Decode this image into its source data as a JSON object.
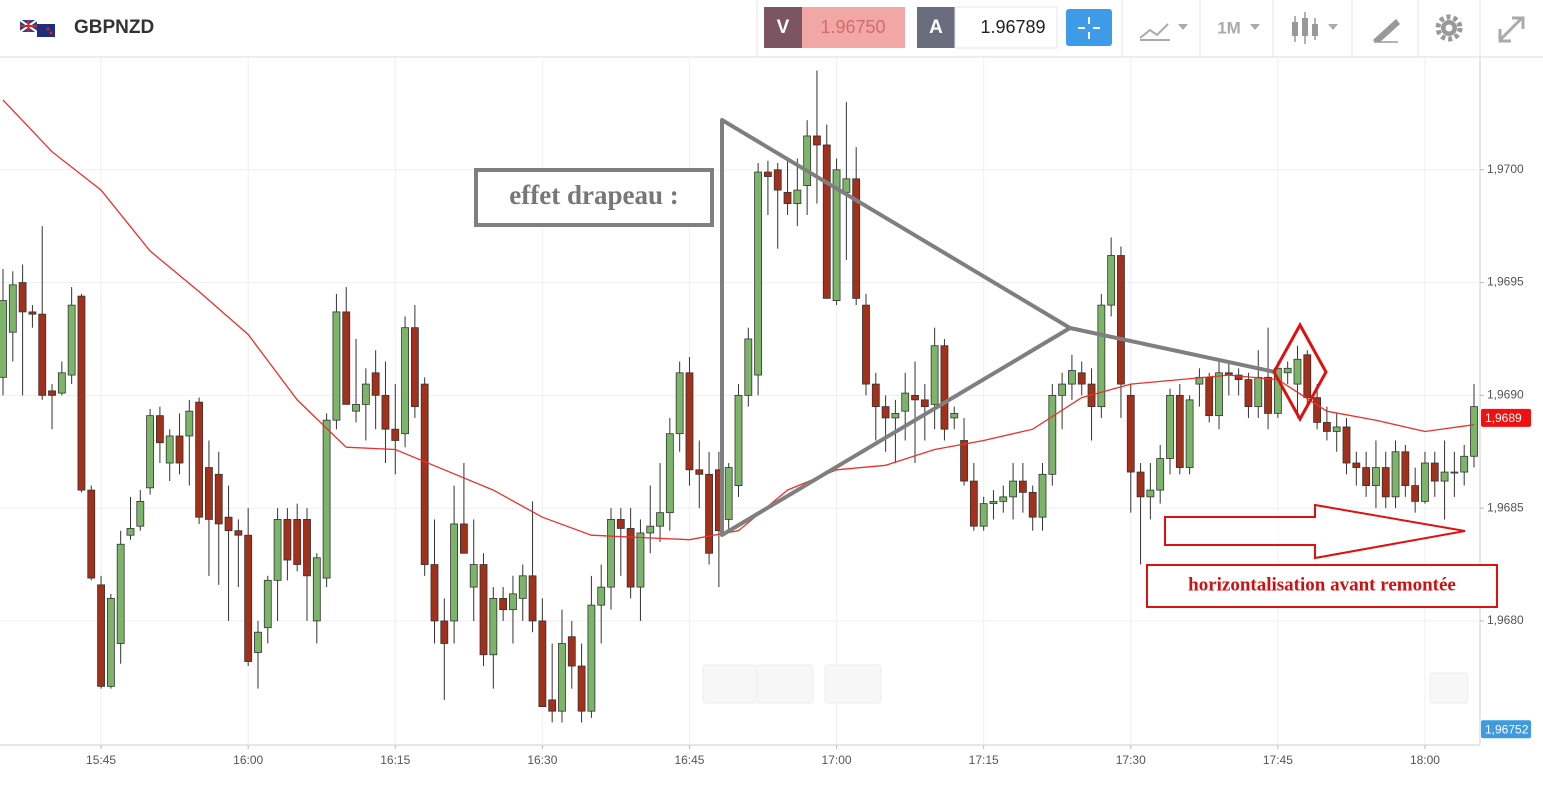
{
  "header": {
    "symbol": "GBPNZD",
    "sell_label": "V",
    "sell_price": "1.96750",
    "buy_label": "A",
    "buy_price": "1.96789",
    "timeframe": "1M"
  },
  "chart_data": {
    "type": "candlestick",
    "x": [
      "15:35",
      "15:36",
      "15:37",
      "15:38",
      "15:39",
      "15:40",
      "15:41",
      "15:42",
      "15:43",
      "15:44",
      "15:45",
      "15:46",
      "15:47",
      "15:48",
      "15:49",
      "15:50",
      "15:51",
      "15:52",
      "15:53",
      "15:54",
      "15:55",
      "15:56",
      "15:57",
      "15:58",
      "15:59",
      "16:00",
      "16:01",
      "16:02",
      "16:03",
      "16:04",
      "16:05",
      "16:06",
      "16:07",
      "16:08",
      "16:09",
      "16:10",
      "16:11",
      "16:12",
      "16:13",
      "16:14",
      "16:15",
      "16:16",
      "16:17",
      "16:18",
      "16:19",
      "16:20",
      "16:21",
      "16:22",
      "16:23",
      "16:24",
      "16:25",
      "16:26",
      "16:27",
      "16:28",
      "16:29",
      "16:30",
      "16:31",
      "16:32",
      "16:33",
      "16:34",
      "16:35",
      "16:36",
      "16:37",
      "16:38",
      "16:39",
      "16:40",
      "16:41",
      "16:42",
      "16:43",
      "16:44",
      "16:45",
      "16:46",
      "16:47",
      "16:48",
      "16:49",
      "16:50",
      "16:51",
      "16:52",
      "16:53",
      "16:54",
      "16:55",
      "16:56",
      "16:57",
      "16:58",
      "16:59",
      "17:00",
      "17:01",
      "17:02",
      "17:03",
      "17:04",
      "17:05",
      "17:06",
      "17:07",
      "17:08",
      "17:09",
      "17:10",
      "17:11",
      "17:12",
      "17:13",
      "17:14",
      "17:15",
      "17:16",
      "17:17",
      "17:18",
      "17:19",
      "17:20",
      "17:21",
      "17:22",
      "17:23",
      "17:24",
      "17:25",
      "17:26",
      "17:27",
      "17:28",
      "17:29",
      "17:30",
      "17:31",
      "17:32",
      "17:33",
      "17:34",
      "17:35",
      "17:36",
      "17:37",
      "17:38",
      "17:39",
      "17:40",
      "17:41",
      "17:42",
      "17:43",
      "17:44",
      "17:45",
      "17:46",
      "17:47",
      "17:48",
      "17:49",
      "17:50",
      "17:51",
      "17:52",
      "17:53",
      "17:54",
      "17:55",
      "17:56",
      "17:57",
      "17:58",
      "17:59",
      "18:00",
      "18:01",
      "18:02",
      "18:03",
      "18:04",
      "18:05"
    ],
    "open": [
      1.96908,
      1.96928,
      1.9695,
      1.96937,
      1.96936,
      1.96902,
      1.96901,
      1.96909,
      1.96944,
      1.96858,
      1.96816,
      1.96771,
      1.9679,
      1.96838,
      1.96842,
      1.96859,
      1.96891,
      1.9687,
      1.96882,
      1.96882,
      1.96897,
      1.96868,
      1.96865,
      1.96846,
      1.9684,
      1.96838,
      1.96786,
      1.96797,
      1.96818,
      1.96845,
      1.96845,
      1.96845,
      1.968,
      1.96819,
      1.96889,
      1.96937,
      1.96893,
      1.96896,
      1.9691,
      1.969,
      1.96885,
      1.96883,
      1.9693,
      1.96905,
      1.96825,
      1.968,
      1.968,
      1.96843,
      1.96815,
      1.96825,
      1.96785,
      1.9681,
      1.96805,
      1.9681,
      1.9682,
      1.968,
      1.96765,
      1.9676,
      1.96793,
      1.9678,
      1.9676,
      1.96807,
      1.96815,
      1.96845,
      1.96841,
      1.96815,
      1.96839,
      1.96842,
      1.96848,
      1.96883,
      1.9691,
      1.96867,
      1.96865,
      1.96867,
      1.96845,
      1.9686,
      1.969,
      1.96909,
      1.96999,
      1.97,
      1.9699,
      1.96985,
      1.96993,
      1.97015,
      1.97011,
      1.96942,
      1.9699,
      1.96996,
      1.9694,
      1.96905,
      1.96895,
      1.9689,
      1.96893,
      1.969,
      1.96898,
      1.96896,
      1.96922,
      1.9689,
      1.9688,
      1.96862,
      1.96842,
      1.96852,
      1.96853,
      1.96855,
      1.96862,
      1.96857,
      1.96846,
      1.96865,
      1.969,
      1.96905,
      1.9691,
      1.96905,
      1.96895,
      1.9694,
      1.96962,
      1.969,
      1.96866,
      1.96855,
      1.96858,
      1.96872,
      1.969,
      1.96868,
      1.96905,
      1.96908,
      1.96891,
      1.9691,
      1.96909,
      1.96907,
      1.96895,
      1.96908,
      1.96892,
      1.9691,
      1.96905,
      1.96918,
      1.96899,
      1.96888,
      1.96884,
      1.96886,
      1.9687,
      1.96868,
      1.9686,
      1.96868,
      1.96855,
      1.96875,
      1.9686,
      1.96853,
      1.9687,
      1.96862,
      1.96866,
      1.96866,
      1.96873
    ],
    "high": [
      1.96956,
      1.96955,
      1.96958,
      1.9694,
      1.96975,
      1.96905,
      1.96915,
      1.96948,
      1.96945,
      1.9686,
      1.9682,
      1.96812,
      1.9684,
      1.96855,
      1.96858,
      1.96894,
      1.96895,
      1.96885,
      1.96892,
      1.96898,
      1.96899,
      1.9688,
      1.96875,
      1.9686,
      1.96845,
      1.9685,
      1.968,
      1.9682,
      1.9685,
      1.9685,
      1.96852,
      1.9685,
      1.9683,
      1.96892,
      1.96945,
      1.96948,
      1.96925,
      1.96912,
      1.9692,
      1.96915,
      1.96905,
      1.96935,
      1.9694,
      1.96908,
      1.96845,
      1.9681,
      1.9686,
      1.9687,
      1.96845,
      1.9683,
      1.96815,
      1.96815,
      1.9682,
      1.96825,
      1.96853,
      1.9681,
      1.9679,
      1.96805,
      1.968,
      1.9679,
      1.9682,
      1.96825,
      1.9685,
      1.9685,
      1.9685,
      1.96845,
      1.9686,
      1.9687,
      1.9689,
      1.96915,
      1.96917,
      1.9688,
      1.96875,
      1.96875,
      1.9687,
      1.96905,
      1.9693,
      1.97003,
      1.97004,
      1.97003,
      1.97005,
      1.97005,
      1.97022,
      1.97044,
      1.9702,
      1.97005,
      1.9703,
      1.9701,
      1.96945,
      1.9691,
      1.969,
      1.96898,
      1.9691,
      1.96915,
      1.96905,
      1.9693,
      1.96925,
      1.96895,
      1.9689,
      1.9687,
      1.96855,
      1.96858,
      1.9686,
      1.9687,
      1.9687,
      1.9686,
      1.9687,
      1.96905,
      1.9691,
      1.96918,
      1.96915,
      1.96912,
      1.96945,
      1.9697,
      1.96966,
      1.96905,
      1.9687,
      1.9687,
      1.96878,
      1.96903,
      1.96905,
      1.969,
      1.96912,
      1.9691,
      1.96915,
      1.96915,
      1.96912,
      1.9691,
      1.9692,
      1.9693,
      1.96915,
      1.96915,
      1.96922,
      1.9692,
      1.96905,
      1.96895,
      1.96892,
      1.9689,
      1.96875,
      1.96875,
      1.9688,
      1.96875,
      1.9688,
      1.96878,
      1.96868,
      1.96875,
      1.96875,
      1.9688,
      1.96875,
      1.96878,
      1.96905
    ],
    "low": [
      1.969,
      1.96915,
      1.969,
      1.9693,
      1.96898,
      1.96885,
      1.969,
      1.96905,
      1.96857,
      1.96818,
      1.9677,
      1.9677,
      1.96781,
      1.96836,
      1.9684,
      1.96856,
      1.9687,
      1.96862,
      1.96865,
      1.9686,
      1.96843,
      1.9682,
      1.96816,
      1.968,
      1.96815,
      1.9678,
      1.9677,
      1.9679,
      1.968,
      1.96818,
      1.96822,
      1.968,
      1.9679,
      1.96815,
      1.96885,
      1.96898,
      1.96888,
      1.9688,
      1.96885,
      1.9687,
      1.96865,
      1.96877,
      1.9689,
      1.9682,
      1.9679,
      1.96765,
      1.9679,
      1.9683,
      1.968,
      1.9678,
      1.9677,
      1.968,
      1.9679,
      1.968,
      1.96795,
      1.96762,
      1.96755,
      1.96755,
      1.9677,
      1.96755,
      1.96757,
      1.9679,
      1.96805,
      1.9682,
      1.9681,
      1.968,
      1.9683,
      1.96835,
      1.9684,
      1.96875,
      1.9686,
      1.9685,
      1.96825,
      1.96815,
      1.9684,
      1.96855,
      1.96895,
      1.969,
      1.9698,
      1.96965,
      1.9698,
      1.96975,
      1.9698,
      1.96985,
      1.96945,
      1.9694,
      1.9696,
      1.9694,
      1.969,
      1.9688,
      1.96875,
      1.9687,
      1.9688,
      1.9687,
      1.9688,
      1.96885,
      1.9688,
      1.96885,
      1.9686,
      1.9684,
      1.9684,
      1.96845,
      1.96848,
      1.96845,
      1.96848,
      1.9684,
      1.9684,
      1.9686,
      1.96885,
      1.96898,
      1.969,
      1.9688,
      1.9689,
      1.96935,
      1.9689,
      1.96848,
      1.96825,
      1.96845,
      1.96852,
      1.96865,
      1.96865,
      1.96865,
      1.96895,
      1.96888,
      1.96885,
      1.969,
      1.969,
      1.9689,
      1.9689,
      1.96885,
      1.9689,
      1.96905,
      1.9689,
      1.96895,
      1.96885,
      1.9688,
      1.96875,
      1.96865,
      1.9686,
      1.96855,
      1.9685,
      1.9685,
      1.9685,
      1.96855,
      1.96848,
      1.96852,
      1.96855,
      1.96845,
      1.96855,
      1.9686,
      1.96868
    ],
    "close": [
      1.96942,
      1.96949,
      1.96937,
      1.96936,
      1.969,
      1.969,
      1.9691,
      1.9694,
      1.96858,
      1.96819,
      1.96771,
      1.9681,
      1.96834,
      1.96841,
      1.96853,
      1.96891,
      1.96879,
      1.96882,
      1.9687,
      1.96893,
      1.96846,
      1.96845,
      1.96843,
      1.9684,
      1.96838,
      1.96782,
      1.96795,
      1.96818,
      1.96845,
      1.96827,
      1.96825,
      1.9682,
      1.96828,
      1.96889,
      1.96937,
      1.96896,
      1.96896,
      1.96905,
      1.969,
      1.96885,
      1.9688,
      1.9693,
      1.96895,
      1.96825,
      1.968,
      1.9679,
      1.96843,
      1.9683,
      1.96825,
      1.96785,
      1.9681,
      1.96805,
      1.96812,
      1.9682,
      1.968,
      1.96762,
      1.9676,
      1.9679,
      1.9678,
      1.9676,
      1.96807,
      1.96815,
      1.96845,
      1.96841,
      1.96815,
      1.96839,
      1.96842,
      1.96848,
      1.96883,
      1.9691,
      1.96867,
      1.96865,
      1.9683,
      1.9684,
      1.96868,
      1.969,
      1.96925,
      1.96999,
      1.96997,
      1.96991,
      1.96985,
      1.96991,
      1.97015,
      1.97011,
      1.96943,
      1.97,
      1.96996,
      1.96943,
      1.96905,
      1.96895,
      1.9689,
      1.96892,
      1.96901,
      1.96898,
      1.96895,
      1.96922,
      1.96885,
      1.96892,
      1.96862,
      1.96842,
      1.96852,
      1.96853,
      1.96855,
      1.96862,
      1.96857,
      1.96846,
      1.96865,
      1.969,
      1.96905,
      1.96911,
      1.96905,
      1.96895,
      1.9694,
      1.96962,
      1.96905,
      1.96866,
      1.96855,
      1.96858,
      1.96872,
      1.969,
      1.96868,
      1.96898,
      1.96908,
      1.96891,
      1.9691,
      1.96909,
      1.96907,
      1.96895,
      1.96908,
      1.96892,
      1.96912,
      1.96912,
      1.96916,
      1.96899,
      1.96888,
      1.96884,
      1.96886,
      1.9687,
      1.96868,
      1.9686,
      1.96868,
      1.96855,
      1.96875,
      1.9686,
      1.96853,
      1.9687,
      1.96862,
      1.96866,
      1.96866,
      1.96873,
      1.96895
    ],
    "up_color": "#7cb56a",
    "down_color": "#a3301a",
    "ma": {
      "x": [
        "15:35",
        "15:40",
        "15:45",
        "15:50",
        "15:55",
        "16:00",
        "16:05",
        "16:10",
        "16:15",
        "16:20",
        "16:25",
        "16:30",
        "16:35",
        "16:40",
        "16:45",
        "16:50",
        "16:55",
        "17:00",
        "17:05",
        "17:10",
        "17:15",
        "17:20",
        "17:25",
        "17:30",
        "17:35",
        "17:40",
        "17:45",
        "17:50",
        "17:55",
        "18:00",
        "18:05"
      ],
      "values": [
        1.97031,
        1.97008,
        1.96991,
        1.96964,
        1.96946,
        1.96927,
        1.96898,
        1.96877,
        1.96876,
        1.96867,
        1.96858,
        1.96846,
        1.96838,
        1.96837,
        1.96836,
        1.9684,
        1.96858,
        1.96867,
        1.96869,
        1.96876,
        1.9688,
        1.96885,
        1.96899,
        1.96905,
        1.96907,
        1.96909,
        1.96907,
        1.96893,
        1.96889,
        1.96884,
        1.96887
      ],
      "color": "#e8322c"
    },
    "xlim": [
      "15:35",
      "18:05"
    ],
    "xticks": [
      "15:45",
      "16:00",
      "16:15",
      "16:30",
      "16:45",
      "17:00",
      "17:15",
      "17:30",
      "17:45",
      "18:00"
    ],
    "ylim": [
      1.96745,
      1.9705
    ],
    "yticks": [
      {
        "value": 1.968,
        "label": "1,9680"
      },
      {
        "value": 1.9685,
        "label": "1,9685"
      },
      {
        "value": 1.969,
        "label": "1,9690"
      },
      {
        "value": 1.9695,
        "label": "1,9695"
      },
      {
        "value": 1.97,
        "label": "1,9700"
      }
    ],
    "grid": true,
    "price_markers": [
      {
        "value": 1.9689,
        "label": "1,9689",
        "color": "#ee1111"
      },
      {
        "value": 1.96752,
        "label": "1,96752",
        "color": "#3d9be0"
      }
    ],
    "annotations": [
      "effet drapeau :",
      "horizontalisation avant remontée"
    ]
  }
}
